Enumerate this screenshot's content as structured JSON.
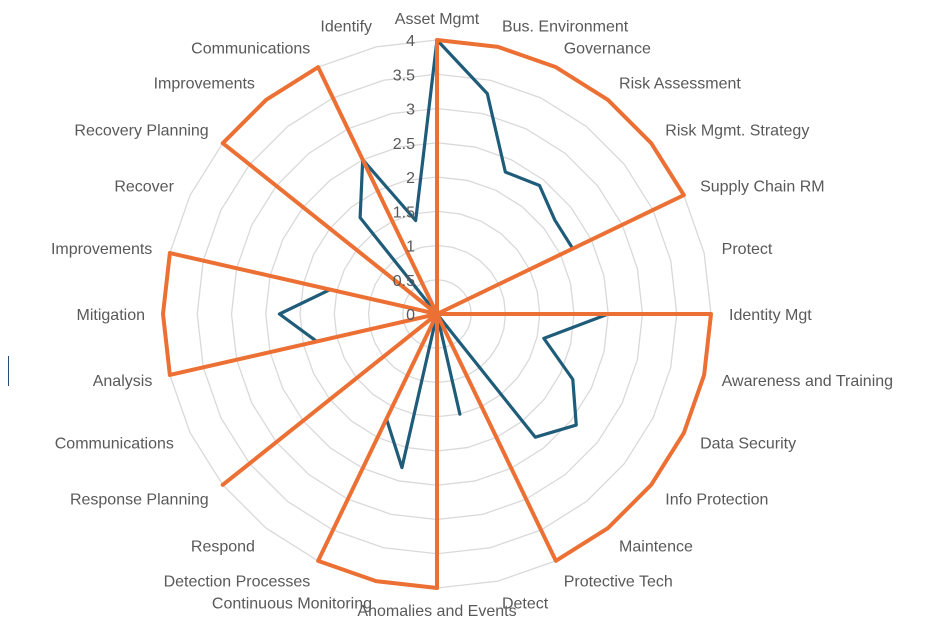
{
  "chart_data": {
    "type": "radar",
    "categories": [
      "Asset Mgmt",
      "Bus. Environment",
      "Governance",
      "Risk Assessment",
      "Risk Mgmt. Strategy",
      "Supply Chain RM",
      "Protect",
      "Identity Mgt",
      "Awareness and Training",
      "Data Security",
      "Info Protection",
      "Maintence",
      "Protective Tech",
      "Detect",
      "Anomalies and Events",
      "Continuous Monitoring",
      "Detection Processes",
      "Respond",
      "Response Planning",
      "Communications",
      "Analysis",
      "Mitigation",
      "Improvements",
      "Recover",
      "Recovery Planning",
      "Improvements",
      "Communications",
      "Identify"
    ],
    "rlim": [
      0,
      4
    ],
    "ticks": [
      "0",
      "0.5",
      "1",
      "1.5",
      "2",
      "2.5",
      "3",
      "3.5",
      "4"
    ],
    "series": [
      {
        "color": "#1f5c7a",
        "values": [
          4,
          3.3,
          2.3,
          2.4,
          2.2,
          2.2,
          0,
          2.5,
          1.6,
          2.2,
          2.6,
          2.3,
          0,
          1.5,
          0,
          2.3,
          1.7,
          0,
          0,
          0,
          1.8,
          2.3,
          1.6,
          0,
          0,
          1.8,
          2.5,
          1.4
        ]
      },
      {
        "color": "#ec7033",
        "values": [
          4,
          4,
          4,
          4,
          4,
          4,
          0,
          4,
          4,
          4,
          4,
          4,
          4,
          0,
          4,
          4,
          4,
          0,
          4,
          0,
          4,
          4,
          4,
          0,
          4,
          4,
          4,
          0
        ]
      }
    ],
    "grid": true,
    "legend": "none"
  },
  "colors": {
    "grid": "#d9d9d9",
    "label": "#595959"
  }
}
